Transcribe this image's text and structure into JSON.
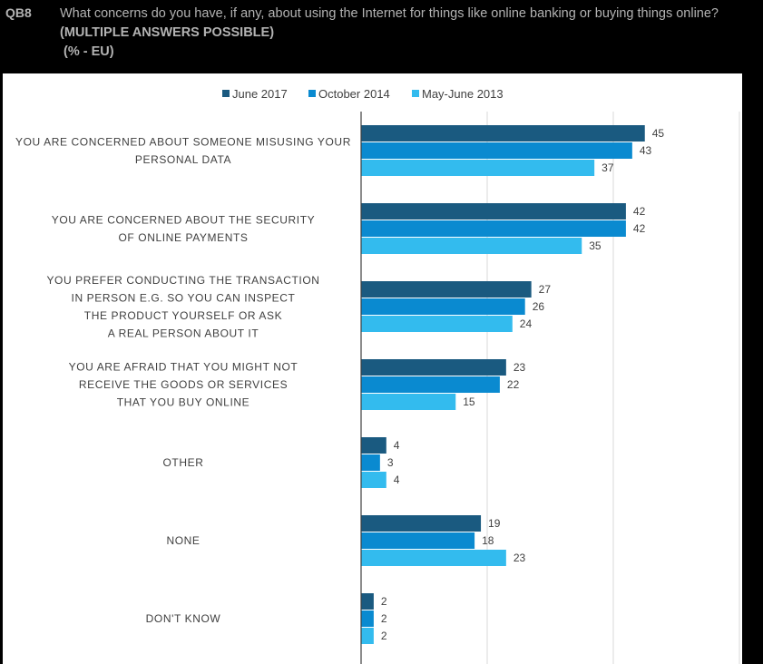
{
  "question": {
    "id": "QB8",
    "text": "What concerns do you have, if any, about using the Internet for things like online banking or buying things online?",
    "note": "(MULTIPLE ANSWERS POSSIBLE)",
    "unit": "(% - EU)"
  },
  "colors": {
    "background": "#000000",
    "panel": "#ffffff",
    "series": [
      "#1a5a80",
      "#0a8ad0",
      "#33bbee"
    ]
  },
  "chart_data": {
    "type": "bar",
    "orientation": "horizontal",
    "title": "What concerns do you have, if any, about using the Internet for things like online banking or buying things online?",
    "xlim": [
      0,
      60
    ],
    "grid": true,
    "legend_position": "top",
    "categories": [
      [
        "YOU ARE CONCERNED  ABOUT SOMEONE MISUSING YOUR",
        "PERSONAL DATA"
      ],
      [
        "YOU ARE CONCERNED  ABOUT THE SECURITY",
        "OF ONLINE PAYMENTS"
      ],
      [
        "YOU PREFER CONDUCTING THE TRANSACTION",
        "IN PERSON E.G. SO YOU  CAN INSPECT",
        "THE PRODUCT YOURSELF OR ASK",
        "A REAL PERSON ABOUT IT"
      ],
      [
        "YOU ARE AFRAID THAT YOU MIGHT NOT",
        "RECEIVE THE GOODS OR SERVICES",
        "THAT YOU  BUY ONLINE"
      ],
      [
        "OTHER"
      ],
      [
        "NONE"
      ],
      [
        "DON'T KNOW"
      ]
    ],
    "series": [
      {
        "name": "June 2017",
        "values": [
          45,
          42,
          27,
          23,
          4,
          19,
          2
        ]
      },
      {
        "name": "October 2014",
        "values": [
          43,
          42,
          26,
          22,
          3,
          18,
          2
        ]
      },
      {
        "name": "May-June 2013",
        "values": [
          37,
          35,
          24,
          15,
          4,
          23,
          2
        ]
      }
    ]
  }
}
